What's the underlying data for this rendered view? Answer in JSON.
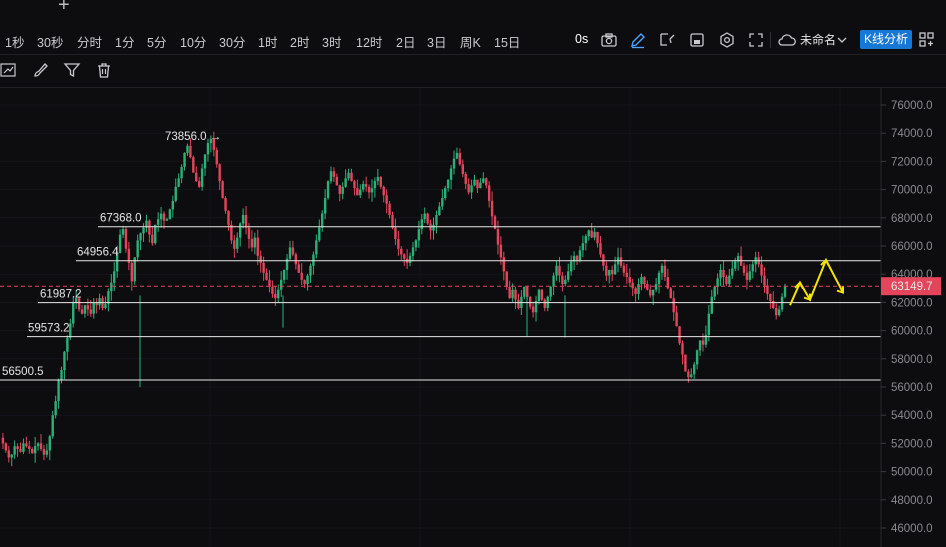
{
  "tabbar": {
    "add_icon": "plus-icon"
  },
  "timeframes": [
    "1秒",
    "30秒",
    "分时",
    "1分",
    "5分",
    "10分",
    "30分",
    "1时",
    "2时",
    "3时",
    "12时",
    "2日",
    "3日",
    "周K",
    "15日"
  ],
  "toolbar": {
    "countdown": "0s",
    "icons": [
      "camera-icon",
      "pencil-icon",
      "drawing-tool-icon",
      "template-icon",
      "settings-icon",
      "fullscreen-icon",
      "cloud-icon",
      "chevron-down-icon",
      "add-icon"
    ],
    "workspace_name": "未命名",
    "kline_button": "K线分析"
  },
  "tools": [
    "trendline-tool-icon",
    "brush-tool-icon",
    "filter-icon",
    "trash-icon"
  ],
  "price_axis": [
    "76000.0",
    "74000.0",
    "72000.0",
    "70000.0",
    "68000.0",
    "66000.0",
    "64000.0",
    "62000.0",
    "60000.0",
    "58000.0",
    "56000.0",
    "54000.0",
    "52000.0",
    "50000.0",
    "48000.0",
    "46000.0"
  ],
  "current_price": "63149.7",
  "levels": [
    "67368.0",
    "64956.4",
    "61987.2",
    "59573.2",
    "56500.5"
  ],
  "peak_label": "73856.0 →",
  "colors": {
    "up": "#2bb177",
    "down": "#e4455b",
    "accent": "#1677d6",
    "price_tag": "#e4455b",
    "arrow": "#f2e500",
    "level_line": "#e8e8e8"
  },
  "chart_data": {
    "type": "candlestick",
    "y_min": 45000,
    "y_max": 77000,
    "horizontal_levels": [
      67368.0,
      64956.4,
      61987.2,
      59573.2,
      56500.5
    ],
    "peak": 73856.0,
    "last_price": 63149.7,
    "close_path": [
      52400,
      52000,
      51500,
      51000,
      51200,
      51800,
      51600,
      51400,
      52000,
      51800,
      51600,
      51300,
      51800,
      52000,
      51600,
      51200,
      51500,
      52500,
      54000,
      55000,
      56500,
      57200,
      58500,
      59500,
      60500,
      62000,
      62300,
      61500,
      61200,
      61800,
      61500,
      61200,
      62000,
      61800,
      62300,
      61600,
      61900,
      62800,
      63400,
      64200,
      65500,
      66800,
      67200,
      65800,
      64800,
      63500,
      65200,
      66400,
      66900,
      67300,
      67800,
      66800,
      66200,
      67500,
      67900,
      68300,
      67800,
      67900,
      68600,
      69200,
      70200,
      70800,
      71600,
      72600,
      73100,
      72300,
      71200,
      70600,
      70200,
      71500,
      72500,
      73300,
      73600,
      72800,
      71800,
      70600,
      69400,
      68500,
      67500,
      66400,
      65800,
      66600,
      67600,
      68200,
      67300,
      66500,
      65900,
      66600,
      65300,
      64800,
      64100,
      63600,
      63100,
      62600,
      62300,
      62900,
      63600,
      64300,
      65100,
      65900,
      65400,
      64700,
      64100,
      63600,
      63300,
      63900,
      64600,
      65400,
      66400,
      67300,
      68300,
      69400,
      70600,
      71300,
      70900,
      70300,
      69700,
      70200,
      70800,
      71200,
      70600,
      70100,
      69600,
      70000,
      70400,
      70200,
      69800,
      70100,
      70600,
      70900,
      70200,
      69600,
      69000,
      68200,
      67300,
      66500,
      65800,
      65400,
      65100,
      64800,
      65300,
      65900,
      66400,
      67200,
      67900,
      68300,
      67600,
      67100,
      67500,
      68200,
      68800,
      69400,
      70100,
      70700,
      71500,
      72200,
      72600,
      71800,
      71100,
      70400,
      69800,
      70300,
      70700,
      70100,
      70500,
      70800,
      70300,
      69200,
      68100,
      67200,
      66100,
      65200,
      64200,
      63100,
      62300,
      62900,
      62200,
      61600,
      62400,
      63100,
      62400,
      61700,
      61300,
      62100,
      62900,
      62200,
      61600,
      62400,
      63100,
      63900,
      64600,
      63900,
      63300,
      63600,
      64200,
      64900,
      65300,
      65000,
      65700,
      66200,
      66700,
      67100,
      66600,
      67000,
      66200,
      65400,
      64600,
      63900,
      64300,
      64000,
      64700,
      65200,
      64600,
      64100,
      63800,
      63400,
      63000,
      62600,
      63300,
      63800,
      63300,
      62900,
      62500,
      62900,
      63300,
      64100,
      64600,
      63800,
      63000,
      62300,
      61300,
      60300,
      59100,
      58300,
      57100,
      56700,
      56900,
      57600,
      58600,
      59300,
      59000,
      59700,
      61200,
      62400,
      63100,
      63700,
      64300,
      63800,
      63300,
      63900,
      64400,
      64900,
      65300,
      64600,
      64100,
      63600,
      64200,
      64700,
      65200,
      64700,
      63900,
      63200,
      62600,
      62100,
      61600,
      61100,
      61500,
      62400,
      63149.7
    ]
  }
}
